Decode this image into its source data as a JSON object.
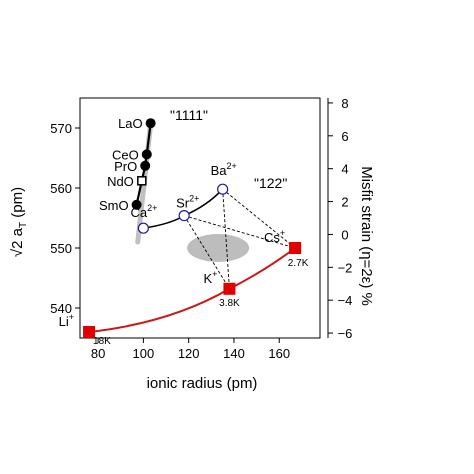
{
  "chart_data": {
    "type": "scatter",
    "title": "",
    "xlabel": "ionic radius (pm)",
    "ylabel": "√2 a_T (pm)",
    "y2label": "Misfit strain (η=2ε) %",
    "xlim": [
      72,
      178
    ],
    "ylim": [
      535,
      575
    ],
    "y2lim": [
      -6.3,
      8.3
    ],
    "x_ticks": [
      "80",
      "100",
      "120",
      "140",
      "160"
    ],
    "y_ticks": [
      "540",
      "550",
      "560",
      "570"
    ],
    "y2_ticks": [
      "8",
      "6",
      "4",
      "2",
      "0",
      "−2",
      "−4",
      "−6"
    ],
    "grid": false,
    "colors": {
      "red": "#e00000",
      "red_line": "#c81818",
      "black": "#000000",
      "gray": "#c0c0c0",
      "blue": "#1a1aa8"
    },
    "group_labels": {
      "g1111": "\"1111\"",
      "g122": "\"122\""
    },
    "series_1111": {
      "points": [
        {
          "label": "LaO",
          "x": 103.2,
          "y": 570.8,
          "marker": "filled"
        },
        {
          "label": "CeO",
          "x": 101.5,
          "y": 565.6,
          "marker": "filled"
        },
        {
          "label": "PrO",
          "x": 100.8,
          "y": 563.7,
          "marker": "filled"
        },
        {
          "label": "NdO",
          "x": 99.3,
          "y": 561.2,
          "marker": "open-square"
        },
        {
          "label": "SmO",
          "x": 97.0,
          "y": 557.2,
          "marker": "filled"
        }
      ]
    },
    "series_122_ae": {
      "points": [
        {
          "base": "Ca",
          "charge": "2+",
          "x": 100.0,
          "y": 553.3
        },
        {
          "base": "Sr",
          "charge": "2+",
          "x": 118.0,
          "y": 555.4
        },
        {
          "base": "Ba",
          "charge": "2+",
          "x": 135.0,
          "y": 559.8
        }
      ]
    },
    "series_122_alkali": {
      "points": [
        {
          "base": "Li",
          "charge": "+",
          "x": 76.0,
          "y": 536.0,
          "tc": "18K"
        },
        {
          "base": "K",
          "charge": "+",
          "x": 138.0,
          "y": 543.2,
          "tc": "3.8K"
        },
        {
          "base": "Cs",
          "charge": "+",
          "x": 167.0,
          "y": 550.0,
          "tc": "2.7K"
        }
      ]
    }
  }
}
